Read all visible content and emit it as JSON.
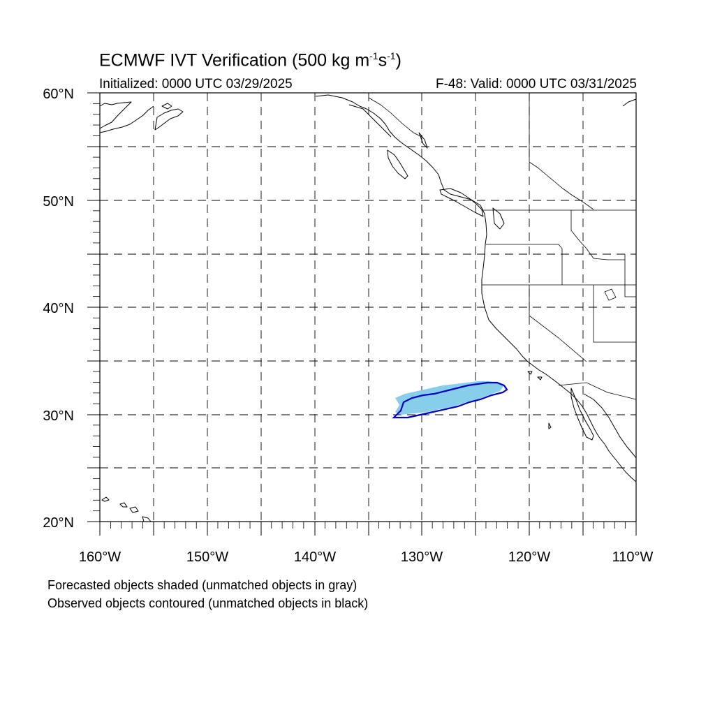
{
  "title": {
    "main": "ECMWF IVT Verification (500 kg m",
    "exp1": "-1",
    "mid": "s",
    "exp2": "-1",
    "close": ")"
  },
  "subtitle_left": "Initialized: 0000 UTC 03/29/2025",
  "subtitle_right": "F-48: Valid: 0000 UTC 03/31/2025",
  "lat_labels": [
    "60°N",
    "50°N",
    "40°N",
    "30°N",
    "20°N"
  ],
  "lon_labels": [
    "160°W",
    "150°W",
    "140°W",
    "130°W",
    "120°W",
    "110°W"
  ],
  "notes": [
    "Forecasted objects shaded (unmatched objects in gray)",
    "Observed objects contoured (unmatched objects in black)"
  ],
  "colors": {
    "forecast_fill": "#87ceeb",
    "observed_contour": "#0000cc",
    "grid": "#000000",
    "coast": "#000000"
  },
  "map": {
    "projection": "cylindrical equidistant",
    "lon_range": [
      -160,
      -110
    ],
    "lat_range": [
      20,
      60
    ],
    "grid_interval_deg": 5
  }
}
